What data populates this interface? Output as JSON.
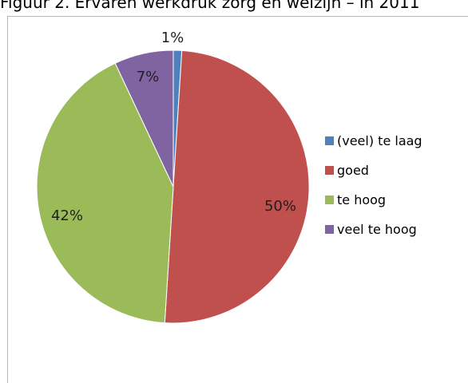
{
  "caption": "Figuur 2. Ervaren werkdruk zorg en welzijn – in 2011",
  "chart_data": {
    "type": "pie",
    "categories": [
      "(veel) te laag",
      "goed",
      "te hoog",
      "veel te hoog"
    ],
    "values": [
      1,
      50,
      42,
      7
    ],
    "value_labels": [
      "1%",
      "50%",
      "42%",
      "7%"
    ],
    "colors": [
      "#4f81bd",
      "#c0504d",
      "#9bbb59",
      "#8064a2"
    ],
    "legend_position": "right",
    "start_angle_deg": 0,
    "direction": "clockwise",
    "slice_degrees": [
      3.6,
      180,
      151.2,
      25.2
    ]
  }
}
